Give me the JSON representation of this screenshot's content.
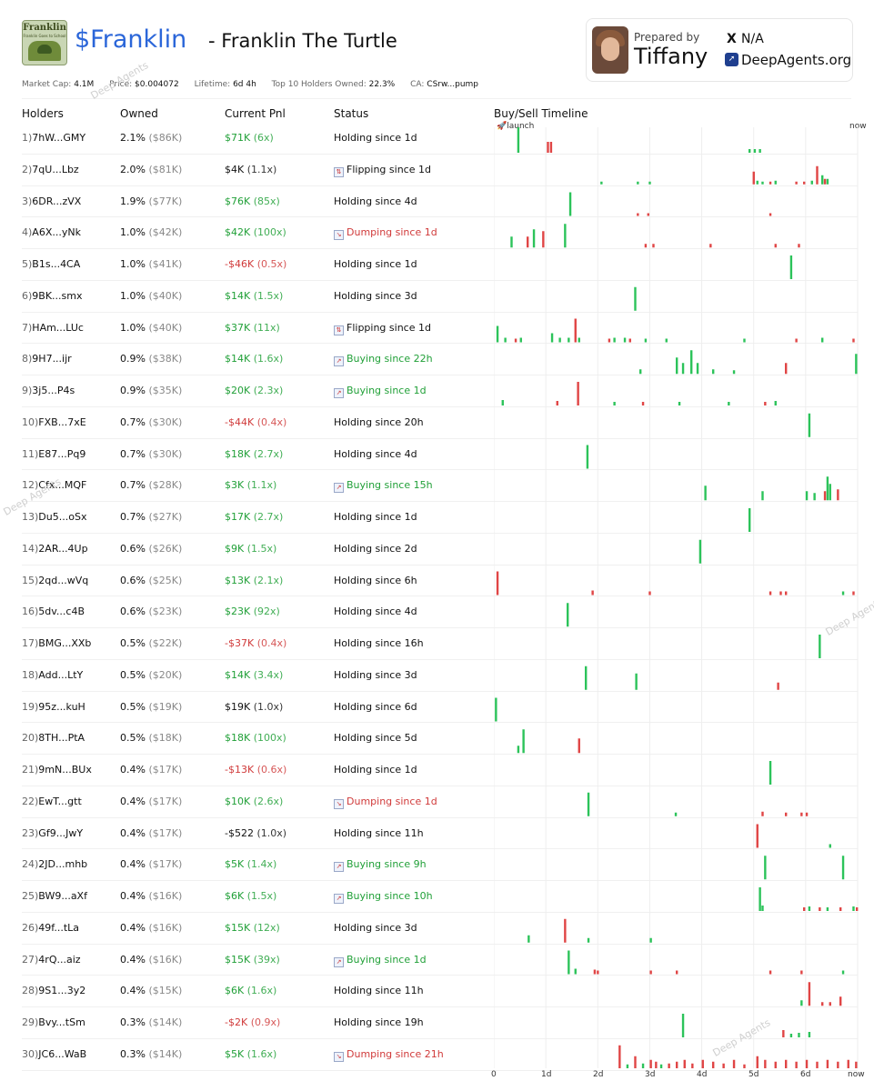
{
  "token": {
    "ticker": "$Franklin",
    "separator": "-",
    "name": "Franklin The Turtle",
    "logo_title": "Franklin",
    "logo_subtitle": "Franklin Goes to School"
  },
  "prepared": {
    "label": "Prepared by",
    "name": "Tiffany",
    "x_icon": "X",
    "x_handle": "N/A",
    "site_icon": "deepagents-logo",
    "site": "DeepAgents.org"
  },
  "stats": {
    "market_cap_label": "Market Cap:",
    "market_cap": "4.1M",
    "price_label": "Price:",
    "price": "$0.004072",
    "lifetime_label": "Lifetime:",
    "lifetime": "6d 4h",
    "top10_label": "Top 10 Holders Owned:",
    "top10": "22.3%",
    "ca_label": "CA:",
    "ca": "CSrw...pump"
  },
  "columns": {
    "holders": "Holders",
    "owned": "Owned",
    "pnl": "Current Pnl",
    "status": "Status",
    "timeline": "Buy/Sell Timeline"
  },
  "timeline": {
    "launch_label": "launch",
    "now_label": "now",
    "axis_ticks": [
      "0",
      "1d",
      "2d",
      "3d",
      "4d",
      "5d",
      "6d",
      "now"
    ],
    "buy_color": "#2cc35a",
    "sell_color": "#e04545"
  },
  "watermark": "Deep Agents",
  "holders": [
    {
      "rank": "1)",
      "addr": "7hW...GMY",
      "pct": "2.1%",
      "usd": "($86K)",
      "pnl": "$71K",
      "mult": "(6x)",
      "pnl_color": "green",
      "status": "Holding since 1d",
      "status_type": "holding"
    },
    {
      "rank": "2)",
      "addr": "7qU...Lbz",
      "pct": "2.0%",
      "usd": "($81K)",
      "pnl": "$4K",
      "mult": "(1.1x)",
      "pnl_color": "black",
      "status": "Flipping since 1d",
      "status_type": "flipping"
    },
    {
      "rank": "3)",
      "addr": "6DR...zVX",
      "pct": "1.9%",
      "usd": "($77K)",
      "pnl": "$76K",
      "mult": "(85x)",
      "pnl_color": "green",
      "status": "Holding since 4d",
      "status_type": "holding"
    },
    {
      "rank": "4)",
      "addr": "A6X...yNk",
      "pct": "1.0%",
      "usd": "($42K)",
      "pnl": "$42K",
      "mult": "(100x)",
      "pnl_color": "green",
      "status": "Dumping since 1d",
      "status_type": "dumping"
    },
    {
      "rank": "5)",
      "addr": "B1s...4CA",
      "pct": "1.0%",
      "usd": "($41K)",
      "pnl": "-$46K",
      "mult": "(0.5x)",
      "pnl_color": "red",
      "status": "Holding since 1d",
      "status_type": "holding"
    },
    {
      "rank": "6)",
      "addr": "9BK...smx",
      "pct": "1.0%",
      "usd": "($40K)",
      "pnl": "$14K",
      "mult": "(1.5x)",
      "pnl_color": "green",
      "status": "Holding since 3d",
      "status_type": "holding"
    },
    {
      "rank": "7)",
      "addr": "HAm...LUc",
      "pct": "1.0%",
      "usd": "($40K)",
      "pnl": "$37K",
      "mult": "(11x)",
      "pnl_color": "green",
      "status": "Flipping since 1d",
      "status_type": "flipping"
    },
    {
      "rank": "8)",
      "addr": "9H7...ijr",
      "pct": "0.9%",
      "usd": "($38K)",
      "pnl": "$14K",
      "mult": "(1.6x)",
      "pnl_color": "green",
      "status": "Buying since 22h",
      "status_type": "buying"
    },
    {
      "rank": "9)",
      "addr": "3j5...P4s",
      "pct": "0.9%",
      "usd": "($35K)",
      "pnl": "$20K",
      "mult": "(2.3x)",
      "pnl_color": "green",
      "status": "Buying since 1d",
      "status_type": "buying"
    },
    {
      "rank": "10)",
      "addr": "FXB...7xE",
      "pct": "0.7%",
      "usd": "($30K)",
      "pnl": "-$44K",
      "mult": "(0.4x)",
      "pnl_color": "red",
      "status": "Holding since 20h",
      "status_type": "holding"
    },
    {
      "rank": "11)",
      "addr": "E87...Pq9",
      "pct": "0.7%",
      "usd": "($30K)",
      "pnl": "$18K",
      "mult": "(2.7x)",
      "pnl_color": "green",
      "status": "Holding since 4d",
      "status_type": "holding"
    },
    {
      "rank": "12)",
      "addr": "Cfx...MQF",
      "pct": "0.7%",
      "usd": "($28K)",
      "pnl": "$3K",
      "mult": "(1.1x)",
      "pnl_color": "green",
      "status": "Buying since 15h",
      "status_type": "buying"
    },
    {
      "rank": "13)",
      "addr": "Du5...oSx",
      "pct": "0.7%",
      "usd": "($27K)",
      "pnl": "$17K",
      "mult": "(2.7x)",
      "pnl_color": "green",
      "status": "Holding since 1d",
      "status_type": "holding"
    },
    {
      "rank": "14)",
      "addr": "2AR...4Up",
      "pct": "0.6%",
      "usd": "($26K)",
      "pnl": "$9K",
      "mult": "(1.5x)",
      "pnl_color": "green",
      "status": "Holding since 2d",
      "status_type": "holding"
    },
    {
      "rank": "15)",
      "addr": "2qd...wVq",
      "pct": "0.6%",
      "usd": "($25K)",
      "pnl": "$13K",
      "mult": "(2.1x)",
      "pnl_color": "green",
      "status": "Holding since 6h",
      "status_type": "holding"
    },
    {
      "rank": "16)",
      "addr": "5dv...c4B",
      "pct": "0.6%",
      "usd": "($23K)",
      "pnl": "$23K",
      "mult": "(92x)",
      "pnl_color": "green",
      "status": "Holding since 4d",
      "status_type": "holding"
    },
    {
      "rank": "17)",
      "addr": "BMG...XXb",
      "pct": "0.5%",
      "usd": "($22K)",
      "pnl": "-$37K",
      "mult": "(0.4x)",
      "pnl_color": "red",
      "status": "Holding since 16h",
      "status_type": "holding"
    },
    {
      "rank": "18)",
      "addr": "Add...LtY",
      "pct": "0.5%",
      "usd": "($20K)",
      "pnl": "$14K",
      "mult": "(3.4x)",
      "pnl_color": "green",
      "status": "Holding since 3d",
      "status_type": "holding"
    },
    {
      "rank": "19)",
      "addr": "95z...kuH",
      "pct": "0.5%",
      "usd": "($19K)",
      "pnl": "$19K",
      "mult": "(1.0x)",
      "pnl_color": "black",
      "status": "Holding since 6d",
      "status_type": "holding"
    },
    {
      "rank": "20)",
      "addr": "8TH...PtA",
      "pct": "0.5%",
      "usd": "($18K)",
      "pnl": "$18K",
      "mult": "(100x)",
      "pnl_color": "green",
      "status": "Holding since 5d",
      "status_type": "holding"
    },
    {
      "rank": "21)",
      "addr": "9mN...BUx",
      "pct": "0.4%",
      "usd": "($17K)",
      "pnl": "-$13K",
      "mult": "(0.6x)",
      "pnl_color": "red",
      "status": "Holding since 1d",
      "status_type": "holding"
    },
    {
      "rank": "22)",
      "addr": "EwT...gtt",
      "pct": "0.4%",
      "usd": "($17K)",
      "pnl": "$10K",
      "mult": "(2.6x)",
      "pnl_color": "green",
      "status": "Dumping since 1d",
      "status_type": "dumping"
    },
    {
      "rank": "23)",
      "addr": "Gf9...JwY",
      "pct": "0.4%",
      "usd": "($17K)",
      "pnl": "-$522",
      "mult": "(1.0x)",
      "pnl_color": "black",
      "status": "Holding since 11h",
      "status_type": "holding"
    },
    {
      "rank": "24)",
      "addr": "2JD...mhb",
      "pct": "0.4%",
      "usd": "($17K)",
      "pnl": "$5K",
      "mult": "(1.4x)",
      "pnl_color": "green",
      "status": "Buying since 9h",
      "status_type": "buying"
    },
    {
      "rank": "25)",
      "addr": "BW9...aXf",
      "pct": "0.4%",
      "usd": "($16K)",
      "pnl": "$6K",
      "mult": "(1.5x)",
      "pnl_color": "green",
      "status": "Buying since 10h",
      "status_type": "buying"
    },
    {
      "rank": "26)",
      "addr": "49f...tLa",
      "pct": "0.4%",
      "usd": "($16K)",
      "pnl": "$15K",
      "mult": "(12x)",
      "pnl_color": "green",
      "status": "Holding since 3d",
      "status_type": "holding"
    },
    {
      "rank": "27)",
      "addr": "4rQ...aiz",
      "pct": "0.4%",
      "usd": "($16K)",
      "pnl": "$15K",
      "mult": "(39x)",
      "pnl_color": "green",
      "status": "Buying since 1d",
      "status_type": "buying"
    },
    {
      "rank": "28)",
      "addr": "9S1...3y2",
      "pct": "0.4%",
      "usd": "($15K)",
      "pnl": "$6K",
      "mult": "(1.6x)",
      "pnl_color": "green",
      "status": "Holding since 11h",
      "status_type": "holding"
    },
    {
      "rank": "29)",
      "addr": "Bvy...tSm",
      "pct": "0.3%",
      "usd": "($14K)",
      "pnl": "-$2K",
      "mult": "(0.9x)",
      "pnl_color": "red",
      "status": "Holding since 19h",
      "status_type": "holding"
    },
    {
      "rank": "30)",
      "addr": "JC6...WaB",
      "pct": "0.3%",
      "usd": "($14K)",
      "pnl": "$5K",
      "mult": "(1.6x)",
      "pnl_color": "green",
      "status": "Dumping since 21h",
      "status_type": "dumping"
    }
  ],
  "trades": [
    [
      [
        "b",
        0.45,
        30
      ],
      [
        "s",
        1.02,
        12
      ],
      [
        "s",
        1.08,
        12
      ],
      [
        "b",
        4.9,
        4
      ],
      [
        "b",
        5.0,
        4
      ],
      [
        "b",
        5.1,
        4
      ]
    ],
    [
      [
        "b",
        2.05,
        3
      ],
      [
        "b",
        2.75,
        3
      ],
      [
        "b",
        2.98,
        3
      ],
      [
        "s",
        4.98,
        14
      ],
      [
        "b",
        5.05,
        4
      ],
      [
        "b",
        5.15,
        3
      ],
      [
        "s",
        5.3,
        3
      ],
      [
        "b",
        5.4,
        4
      ],
      [
        "s",
        5.8,
        3
      ],
      [
        "s",
        5.95,
        3
      ],
      [
        "b",
        6.1,
        4
      ],
      [
        "s",
        6.2,
        20
      ],
      [
        "b",
        6.3,
        10
      ],
      [
        "s",
        6.35,
        6
      ],
      [
        "b",
        6.4,
        6
      ]
    ],
    [
      [
        "b",
        1.45,
        26
      ],
      [
        "s",
        2.75,
        3
      ],
      [
        "s",
        2.95,
        3
      ],
      [
        "s",
        5.3,
        3
      ]
    ],
    [
      [
        "b",
        0.32,
        12
      ],
      [
        "s",
        0.63,
        12
      ],
      [
        "b",
        0.75,
        20
      ],
      [
        "s",
        0.93,
        18
      ],
      [
        "b",
        1.35,
        26
      ],
      [
        "s",
        2.9,
        4
      ],
      [
        "s",
        3.05,
        4
      ],
      [
        "s",
        4.15,
        4
      ],
      [
        "s",
        5.4,
        4
      ],
      [
        "s",
        5.85,
        4
      ]
    ],
    [
      [
        "b",
        5.7,
        26
      ]
    ],
    [
      [
        "b",
        2.7,
        26
      ]
    ],
    [
      [
        "b",
        0.05,
        18
      ],
      [
        "b",
        0.2,
        5
      ],
      [
        "s",
        0.4,
        4
      ],
      [
        "b",
        0.5,
        5
      ],
      [
        "b",
        1.1,
        10
      ],
      [
        "b",
        1.25,
        5
      ],
      [
        "b",
        1.42,
        5
      ],
      [
        "s",
        1.55,
        26
      ],
      [
        "b",
        1.62,
        5
      ],
      [
        "s",
        2.2,
        4
      ],
      [
        "b",
        2.3,
        5
      ],
      [
        "b",
        2.5,
        5
      ],
      [
        "s",
        2.6,
        4
      ],
      [
        "b",
        2.9,
        4
      ],
      [
        "b",
        3.3,
        4
      ],
      [
        "b",
        4.8,
        4
      ],
      [
        "s",
        5.8,
        4
      ],
      [
        "b",
        6.3,
        5
      ],
      [
        "s",
        6.9,
        4
      ]
    ],
    [
      [
        "b",
        2.8,
        5
      ],
      [
        "b",
        3.5,
        18
      ],
      [
        "b",
        3.62,
        12
      ],
      [
        "b",
        3.78,
        26
      ],
      [
        "b",
        3.9,
        12
      ],
      [
        "b",
        4.2,
        5
      ],
      [
        "b",
        4.6,
        4
      ],
      [
        "s",
        5.6,
        12
      ],
      [
        "b",
        6.95,
        22
      ]
    ],
    [
      [
        "b",
        0.15,
        6
      ],
      [
        "s",
        1.2,
        5
      ],
      [
        "s",
        1.6,
        26
      ],
      [
        "b",
        2.3,
        4
      ],
      [
        "s",
        2.85,
        4
      ],
      [
        "b",
        3.55,
        4
      ],
      [
        "b",
        4.5,
        4
      ],
      [
        "s",
        5.2,
        4
      ],
      [
        "b",
        5.4,
        5
      ]
    ],
    [
      [
        "b",
        6.05,
        26
      ]
    ],
    [
      [
        "b",
        1.78,
        26
      ]
    ],
    [
      [
        "b",
        4.05,
        16
      ],
      [
        "b",
        5.15,
        10
      ],
      [
        "b",
        6.0,
        10
      ],
      [
        "b",
        6.15,
        8
      ],
      [
        "s",
        6.35,
        10
      ],
      [
        "b",
        6.4,
        26
      ],
      [
        "b",
        6.45,
        18
      ],
      [
        "s",
        6.6,
        12
      ]
    ],
    [
      [
        "b",
        4.9,
        26
      ]
    ],
    [
      [
        "b",
        3.95,
        26
      ]
    ],
    [
      [
        "s",
        0.05,
        26
      ],
      [
        "s",
        1.88,
        5
      ],
      [
        "s",
        2.98,
        4
      ],
      [
        "s",
        5.3,
        4
      ],
      [
        "s",
        5.5,
        4
      ],
      [
        "s",
        5.6,
        4
      ],
      [
        "b",
        6.7,
        4
      ],
      [
        "s",
        6.9,
        4
      ]
    ],
    [
      [
        "b",
        1.4,
        26
      ]
    ],
    [
      [
        "b",
        6.25,
        26
      ]
    ],
    [
      [
        "b",
        1.75,
        26
      ],
      [
        "b",
        2.72,
        18
      ],
      [
        "s",
        5.45,
        8
      ]
    ],
    [
      [
        "b",
        0.02,
        26
      ]
    ],
    [
      [
        "b",
        0.45,
        8
      ],
      [
        "b",
        0.55,
        26
      ],
      [
        "s",
        1.62,
        16
      ]
    ],
    [
      [
        "b",
        5.3,
        26
      ]
    ],
    [
      [
        "b",
        1.8,
        26
      ],
      [
        "b",
        3.48,
        4
      ],
      [
        "s",
        5.15,
        5
      ],
      [
        "s",
        5.6,
        4
      ],
      [
        "s",
        5.9,
        4
      ],
      [
        "s",
        6.0,
        4
      ]
    ],
    [
      [
        "s",
        5.05,
        26
      ],
      [
        "b",
        6.45,
        4
      ]
    ],
    [
      [
        "b",
        5.2,
        26
      ],
      [
        "b",
        6.7,
        26
      ]
    ],
    [
      [
        "b",
        5.1,
        26
      ],
      [
        "b",
        5.15,
        6
      ],
      [
        "s",
        5.95,
        4
      ],
      [
        "b",
        6.05,
        5
      ],
      [
        "s",
        6.25,
        4
      ],
      [
        "b",
        6.4,
        4
      ],
      [
        "s",
        6.65,
        4
      ],
      [
        "b",
        6.9,
        5
      ],
      [
        "s",
        7.0,
        4
      ]
    ],
    [
      [
        "b",
        0.65,
        8
      ],
      [
        "s",
        1.35,
        26
      ],
      [
        "b",
        1.8,
        5
      ],
      [
        "b",
        3.0,
        5
      ]
    ],
    [
      [
        "b",
        1.42,
        26
      ],
      [
        "b",
        1.55,
        6
      ],
      [
        "s",
        1.92,
        5
      ],
      [
        "s",
        1.98,
        4
      ],
      [
        "s",
        3.0,
        4
      ],
      [
        "s",
        3.5,
        4
      ],
      [
        "s",
        5.3,
        4
      ],
      [
        "s",
        5.9,
        4
      ],
      [
        "b",
        6.7,
        4
      ]
    ],
    [
      [
        "b",
        5.9,
        6
      ],
      [
        "s",
        6.05,
        26
      ],
      [
        "s",
        6.3,
        4
      ],
      [
        "s",
        6.45,
        4
      ],
      [
        "s",
        6.65,
        10
      ]
    ],
    [
      [
        "b",
        3.62,
        26
      ],
      [
        "s",
        5.55,
        8
      ],
      [
        "b",
        5.7,
        4
      ],
      [
        "b",
        5.85,
        5
      ],
      [
        "b",
        6.05,
        6
      ]
    ],
    [
      [
        "s",
        2.4,
        26
      ],
      [
        "b",
        2.55,
        5
      ],
      [
        "s",
        2.7,
        14
      ],
      [
        "b",
        2.85,
        6
      ],
      [
        "s",
        3.0,
        10
      ],
      [
        "s",
        3.1,
        8
      ],
      [
        "b",
        3.2,
        5
      ],
      [
        "s",
        3.35,
        6
      ],
      [
        "s",
        3.5,
        8
      ],
      [
        "s",
        3.65,
        10
      ],
      [
        "s",
        3.8,
        6
      ],
      [
        "s",
        4.0,
        10
      ],
      [
        "s",
        4.2,
        8
      ],
      [
        "s",
        4.4,
        6
      ],
      [
        "s",
        4.6,
        10
      ],
      [
        "s",
        4.8,
        5
      ],
      [
        "s",
        5.05,
        14
      ],
      [
        "s",
        5.2,
        10
      ],
      [
        "s",
        5.4,
        8
      ],
      [
        "s",
        5.6,
        10
      ],
      [
        "s",
        5.8,
        8
      ],
      [
        "s",
        6.0,
        10
      ],
      [
        "s",
        6.2,
        8
      ],
      [
        "s",
        6.4,
        10
      ],
      [
        "s",
        6.6,
        8
      ],
      [
        "s",
        6.8,
        10
      ],
      [
        "s",
        6.95,
        8
      ]
    ]
  ]
}
